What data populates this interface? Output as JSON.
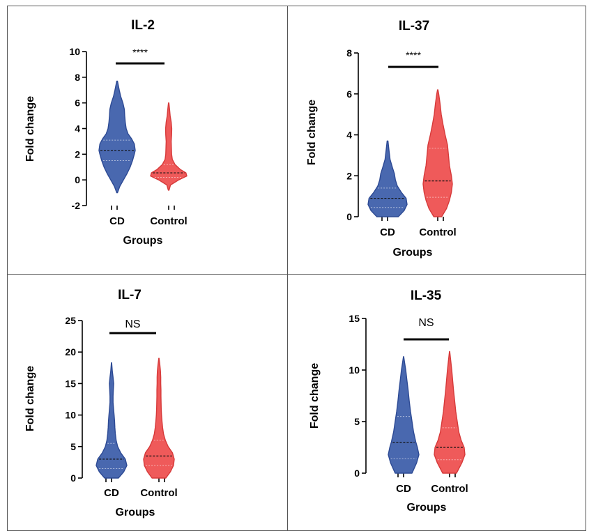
{
  "colors": {
    "cd_fill": "#3a5ba8",
    "cd_stroke": "#2d4a94",
    "control_fill": "#ee4c4c",
    "control_stroke": "#d63a3a",
    "border": "#555555"
  },
  "chart_data": [
    {
      "type": "violin",
      "title": "IL-2",
      "xlabel": "Groups",
      "ylabel": "Fold change",
      "categories": [
        "CD",
        "Control"
      ],
      "ylim": [
        -2,
        10
      ],
      "yticks": [
        "-2",
        "0",
        "2",
        "4",
        "6",
        "8",
        "10"
      ],
      "significance": "****",
      "violins": [
        {
          "name": "CD",
          "min": -1.0,
          "max": 7.7,
          "median": 2.3,
          "q1": 1.5,
          "q3": 3.1,
          "profile": [
            [
              -1.0,
              0.02
            ],
            [
              -0.5,
              0.15
            ],
            [
              0,
              0.35
            ],
            [
              0.5,
              0.55
            ],
            [
              1,
              0.72
            ],
            [
              1.5,
              0.85
            ],
            [
              2,
              0.95
            ],
            [
              2.3,
              1.0
            ],
            [
              2.8,
              0.95
            ],
            [
              3.2,
              0.8
            ],
            [
              3.6,
              0.6
            ],
            [
              4,
              0.5
            ],
            [
              4.5,
              0.45
            ],
            [
              5,
              0.42
            ],
            [
              5.5,
              0.4
            ],
            [
              6,
              0.32
            ],
            [
              6.5,
              0.2
            ],
            [
              7,
              0.12
            ],
            [
              7.7,
              0.02
            ]
          ]
        },
        {
          "name": "Control",
          "min": -0.8,
          "max": 6.0,
          "median": 0.55,
          "q1": 0.2,
          "q3": 1.2,
          "profile": [
            [
              -0.8,
              0.02
            ],
            [
              -0.4,
              0.1
            ],
            [
              0,
              0.55
            ],
            [
              0.3,
              1.0
            ],
            [
              0.55,
              0.95
            ],
            [
              0.8,
              0.65
            ],
            [
              1.2,
              0.35
            ],
            [
              1.6,
              0.2
            ],
            [
              2,
              0.16
            ],
            [
              2.5,
              0.15
            ],
            [
              3,
              0.14
            ],
            [
              3.5,
              0.16
            ],
            [
              4,
              0.17
            ],
            [
              4.5,
              0.14
            ],
            [
              5,
              0.08
            ],
            [
              5.5,
              0.05
            ],
            [
              6,
              0.01
            ]
          ]
        }
      ]
    },
    {
      "type": "violin",
      "title": "IL-37",
      "xlabel": "Groups",
      "ylabel": "Fold change",
      "categories": [
        "CD",
        "Control"
      ],
      "ylim": [
        0,
        8
      ],
      "yticks": [
        "0",
        "2",
        "4",
        "6",
        "8"
      ],
      "significance": "****",
      "violins": [
        {
          "name": "CD",
          "min": 0.0,
          "max": 3.7,
          "median": 0.9,
          "q1": 0.45,
          "q3": 1.4,
          "profile": [
            [
              0,
              0.55
            ],
            [
              0.3,
              0.85
            ],
            [
              0.6,
              1.0
            ],
            [
              0.9,
              0.95
            ],
            [
              1.2,
              0.7
            ],
            [
              1.5,
              0.5
            ],
            [
              1.8,
              0.4
            ],
            [
              2.1,
              0.35
            ],
            [
              2.4,
              0.25
            ],
            [
              2.8,
              0.13
            ],
            [
              3.2,
              0.08
            ],
            [
              3.7,
              0.02
            ]
          ]
        },
        {
          "name": "Control",
          "min": 0.0,
          "max": 6.2,
          "median": 1.75,
          "q1": 0.95,
          "q3": 3.35,
          "profile": [
            [
              0,
              0.2
            ],
            [
              0.4,
              0.45
            ],
            [
              0.8,
              0.6
            ],
            [
              1.2,
              0.7
            ],
            [
              1.6,
              0.75
            ],
            [
              2,
              0.7
            ],
            [
              2.5,
              0.6
            ],
            [
              3,
              0.55
            ],
            [
              3.5,
              0.5
            ],
            [
              4,
              0.38
            ],
            [
              4.5,
              0.27
            ],
            [
              5,
              0.18
            ],
            [
              5.5,
              0.12
            ],
            [
              6,
              0.05
            ],
            [
              6.2,
              0.01
            ]
          ]
        }
      ]
    },
    {
      "type": "violin",
      "title": "IL-7",
      "xlabel": "Groups",
      "ylabel": "Fold change",
      "categories": [
        "CD",
        "Control"
      ],
      "ylim": [
        0,
        25
      ],
      "yticks": [
        "0",
        "5",
        "10",
        "15",
        "20",
        "25"
      ],
      "significance": "NS",
      "violins": [
        {
          "name": "CD",
          "min": 0.0,
          "max": 18.3,
          "median": 3.0,
          "q1": 1.5,
          "q3": 5.5,
          "profile": [
            [
              0,
              0.45
            ],
            [
              1,
              0.8
            ],
            [
              2,
              1.0
            ],
            [
              3,
              0.9
            ],
            [
              4,
              0.6
            ],
            [
              5,
              0.4
            ],
            [
              6,
              0.3
            ],
            [
              7,
              0.25
            ],
            [
              8,
              0.22
            ],
            [
              9,
              0.2
            ],
            [
              10,
              0.17
            ],
            [
              11,
              0.13
            ],
            [
              12,
              0.1
            ],
            [
              13,
              0.1
            ],
            [
              14,
              0.12
            ],
            [
              15,
              0.14
            ],
            [
              16,
              0.1
            ],
            [
              17,
              0.05
            ],
            [
              18.3,
              0.01
            ]
          ]
        },
        {
          "name": "Control",
          "min": 0.0,
          "max": 19.0,
          "median": 3.5,
          "q1": 2.0,
          "q3": 6.0,
          "profile": [
            [
              0,
              0.45
            ],
            [
              1,
              0.75
            ],
            [
              2,
              0.95
            ],
            [
              3,
              1.0
            ],
            [
              4,
              0.88
            ],
            [
              5,
              0.6
            ],
            [
              6,
              0.42
            ],
            [
              7,
              0.3
            ],
            [
              8,
              0.24
            ],
            [
              9,
              0.2
            ],
            [
              10,
              0.17
            ],
            [
              11,
              0.15
            ],
            [
              12,
              0.14
            ],
            [
              13,
              0.13
            ],
            [
              14,
              0.13
            ],
            [
              15,
              0.12
            ],
            [
              16,
              0.12
            ],
            [
              17,
              0.1
            ],
            [
              18,
              0.06
            ],
            [
              19,
              0.01
            ]
          ]
        }
      ]
    },
    {
      "type": "violin",
      "title": "IL-35",
      "xlabel": "Groups",
      "ylabel": "Fold change",
      "categories": [
        "CD",
        "Control"
      ],
      "ylim": [
        0,
        15
      ],
      "yticks": [
        "0",
        "5",
        "10",
        "15"
      ],
      "significance": "NS",
      "violins": [
        {
          "name": "CD",
          "min": 0.0,
          "max": 11.3,
          "median": 3.0,
          "q1": 1.4,
          "q3": 5.5,
          "profile": [
            [
              0,
              0.55
            ],
            [
              1,
              0.85
            ],
            [
              1.8,
              1.0
            ],
            [
              2.5,
              0.9
            ],
            [
              3,
              0.8
            ],
            [
              4,
              0.65
            ],
            [
              5,
              0.55
            ],
            [
              6,
              0.45
            ],
            [
              7,
              0.37
            ],
            [
              8,
              0.3
            ],
            [
              9,
              0.22
            ],
            [
              10,
              0.14
            ],
            [
              10.7,
              0.07
            ],
            [
              11.3,
              0.01
            ]
          ]
        },
        {
          "name": "Control",
          "min": 0.0,
          "max": 11.8,
          "median": 2.5,
          "q1": 1.3,
          "q3": 4.4,
          "profile": [
            [
              0,
              0.45
            ],
            [
              1,
              0.8
            ],
            [
              1.8,
              1.0
            ],
            [
              2.5,
              0.95
            ],
            [
              3.2,
              0.75
            ],
            [
              4,
              0.6
            ],
            [
              5,
              0.5
            ],
            [
              6,
              0.4
            ],
            [
              7,
              0.33
            ],
            [
              8,
              0.26
            ],
            [
              9,
              0.2
            ],
            [
              10,
              0.14
            ],
            [
              11,
              0.07
            ],
            [
              11.8,
              0.01
            ]
          ]
        }
      ]
    }
  ]
}
